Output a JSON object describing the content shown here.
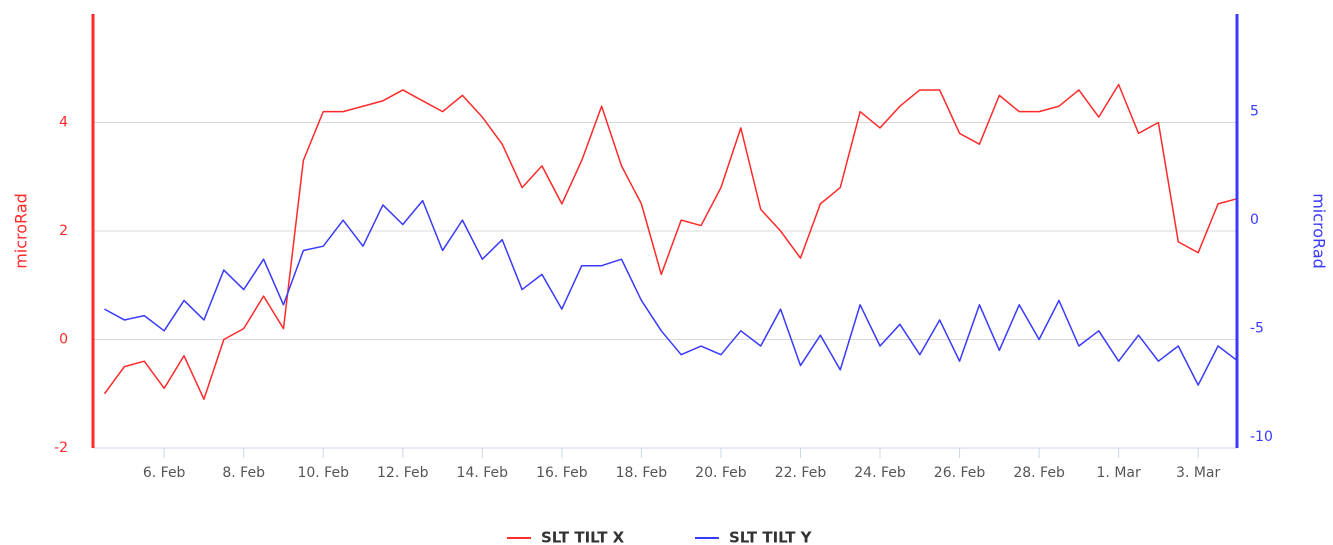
{
  "chart_data": {
    "type": "line",
    "y_label": "microRad",
    "y2_label": "microRad",
    "categories": [
      null,
      null,
      null,
      "6. Feb",
      null,
      null,
      null,
      "8. Feb",
      null,
      null,
      null,
      "10. Feb",
      null,
      null,
      null,
      "12. Feb",
      null,
      null,
      null,
      "14. Feb",
      null,
      null,
      null,
      "16. Feb",
      null,
      null,
      null,
      "18. Feb",
      null,
      null,
      null,
      "20. Feb",
      null,
      null,
      null,
      "22. Feb",
      null,
      null,
      null,
      "24. Feb",
      null,
      null,
      null,
      "26. Feb",
      null,
      null,
      null,
      "28. Feb",
      null,
      null,
      null,
      "1. Mar",
      null,
      null,
      null,
      "3. Mar",
      null,
      null
    ],
    "series": [
      {
        "name": "SLT TILT X",
        "color": "#ff2a2a",
        "axis": "y",
        "values": [
          -1.0,
          -0.5,
          -0.4,
          -0.9,
          -0.3,
          -1.1,
          0.0,
          0.2,
          0.8,
          0.2,
          3.3,
          4.2,
          4.2,
          4.3,
          4.4,
          4.6,
          4.4,
          4.2,
          4.5,
          4.1,
          3.6,
          2.8,
          3.2,
          2.5,
          3.3,
          4.3,
          3.2,
          2.5,
          1.2,
          2.2,
          2.1,
          2.8,
          3.9,
          2.4,
          2.0,
          1.5,
          2.5,
          2.8,
          4.2,
          3.9,
          4.3,
          4.6,
          4.6,
          3.8,
          3.6,
          4.5,
          4.2,
          4.2,
          4.3,
          4.6,
          4.1,
          4.7,
          3.8,
          4.0,
          1.8,
          1.6,
          2.5,
          2.6
        ]
      },
      {
        "name": "SLT TILT Y",
        "color": "#3a3aff",
        "axis": "y2",
        "values": [
          -4.1,
          -4.6,
          -4.4,
          -5.1,
          -3.7,
          -4.6,
          -2.3,
          -3.2,
          -1.8,
          -3.9,
          -1.4,
          -1.2,
          0,
          -1.2,
          0.7,
          -0.2,
          0.9,
          -1.4,
          0,
          -1.8,
          -0.9,
          -3.2,
          -2.5,
          -4.1,
          -2.1,
          -2.1,
          -1.8,
          -3.7,
          -5.1,
          -6.2,
          -5.8,
          -6.2,
          -5.1,
          -5.8,
          -4.1,
          -6.7,
          -5.3,
          -6.9,
          -3.9,
          -5.8,
          -4.8,
          -6.2,
          -4.6,
          -6.5,
          -3.9,
          -6.0,
          -3.9,
          -5.5,
          -3.7,
          -5.8,
          -5.1,
          -6.5,
          -5.3,
          -6.5,
          -5.8,
          -7.6,
          -5.8,
          -6.5
        ]
      }
    ],
    "ylim": [
      -2,
      6
    ],
    "yticks": [
      -2,
      0,
      2,
      4
    ],
    "y2lim": [
      -10.5,
      9.5
    ],
    "y2ticks": [
      -10,
      -5,
      0,
      5
    ],
    "grid": true,
    "legend": "bottom"
  }
}
